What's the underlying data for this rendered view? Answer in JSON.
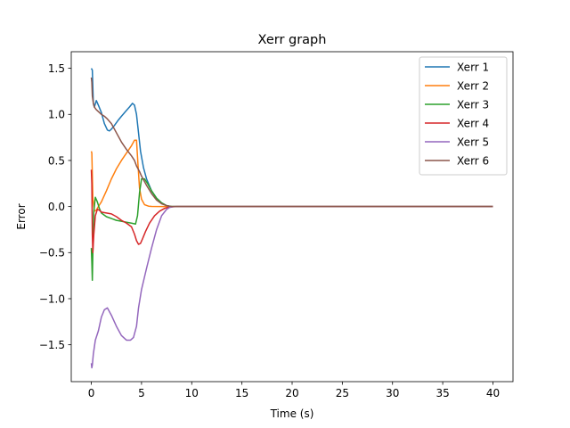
{
  "chart_data": {
    "type": "line",
    "title": "Xerr graph",
    "xlabel": "Time (s)",
    "ylabel": "Error",
    "xlim": [
      -2.0,
      42.0
    ],
    "ylim": [
      -1.9,
      1.68
    ],
    "xticks": [
      0,
      5,
      10,
      15,
      20,
      25,
      30,
      35,
      40
    ],
    "xtick_labels": [
      "0",
      "5",
      "10",
      "15",
      "20",
      "25",
      "30",
      "35",
      "40"
    ],
    "yticks": [
      -1.5,
      -1.0,
      -0.5,
      0.0,
      0.5,
      1.0,
      1.5
    ],
    "ytick_labels": [
      "−1.5",
      "−1.0",
      "−0.5",
      "0.0",
      "0.5",
      "1.0",
      "1.5"
    ],
    "grid": false,
    "legend_position": "top-right",
    "series": [
      {
        "name": "Xerr 1",
        "color": "#1f77b4",
        "x": [
          0,
          0.1,
          0.2,
          0.3,
          0.5,
          0.7,
          1.0,
          1.3,
          1.6,
          1.8,
          2.0,
          2.3,
          2.7,
          3.0,
          3.4,
          3.8,
          4.1,
          4.3,
          4.5,
          4.7,
          4.9,
          5.2,
          5.5,
          6.0,
          6.5,
          7.0,
          7.5,
          7.8,
          8.0,
          10,
          40
        ],
        "y": [
          1.5,
          1.48,
          1.12,
          1.08,
          1.15,
          1.1,
          1.02,
          0.9,
          0.83,
          0.82,
          0.84,
          0.88,
          0.94,
          0.98,
          1.03,
          1.08,
          1.12,
          1.1,
          1.0,
          0.8,
          0.6,
          0.42,
          0.3,
          0.17,
          0.09,
          0.04,
          0.01,
          0.003,
          0.0,
          0.0,
          0.0
        ]
      },
      {
        "name": "Xerr 2",
        "color": "#ff7f0e",
        "x": [
          0,
          0.05,
          0.15,
          0.3,
          0.5,
          0.7,
          1.0,
          1.5,
          2.0,
          2.5,
          3.0,
          3.5,
          4.0,
          4.3,
          4.5,
          4.65,
          4.8,
          5.0,
          5.3,
          5.7,
          6.0,
          7.0,
          8.0,
          10,
          40
        ],
        "y": [
          0.6,
          0.58,
          0.1,
          -0.05,
          -0.04,
          0.0,
          0.05,
          0.17,
          0.3,
          0.41,
          0.5,
          0.58,
          0.66,
          0.72,
          0.72,
          0.45,
          0.2,
          0.08,
          0.02,
          0.004,
          0.001,
          0.0,
          0.0,
          0.0,
          0.0
        ]
      },
      {
        "name": "Xerr 3",
        "color": "#2ca02c",
        "x": [
          0,
          0.05,
          0.1,
          0.15,
          0.25,
          0.4,
          0.6,
          0.8,
          1.0,
          1.5,
          2.0,
          2.5,
          3.0,
          3.5,
          4.0,
          4.4,
          4.6,
          4.8,
          5.0,
          5.3,
          5.6,
          6.0,
          6.5,
          7.0,
          7.5,
          8.0,
          10,
          40
        ],
        "y": [
          -0.45,
          -0.6,
          -0.8,
          -0.5,
          -0.05,
          0.1,
          0.05,
          -0.02,
          -0.07,
          -0.11,
          -0.13,
          -0.15,
          -0.16,
          -0.17,
          -0.18,
          -0.19,
          -0.1,
          0.15,
          0.3,
          0.3,
          0.25,
          0.17,
          0.09,
          0.04,
          0.01,
          0.0,
          0.0,
          0.0
        ]
      },
      {
        "name": "Xerr 4",
        "color": "#d62728",
        "x": [
          0,
          0.05,
          0.1,
          0.15,
          0.25,
          0.4,
          0.6,
          0.8,
          1.0,
          1.5,
          2.0,
          2.5,
          3.0,
          3.5,
          4.0,
          4.3,
          4.5,
          4.7,
          4.9,
          5.1,
          5.4,
          5.8,
          6.3,
          6.8,
          7.3,
          7.8,
          8.5,
          10,
          40
        ],
        "y": [
          0.4,
          0.25,
          -0.3,
          -0.5,
          -0.3,
          -0.1,
          -0.03,
          -0.04,
          -0.06,
          -0.07,
          -0.08,
          -0.11,
          -0.15,
          -0.18,
          -0.22,
          -0.3,
          -0.37,
          -0.41,
          -0.4,
          -0.35,
          -0.27,
          -0.18,
          -0.1,
          -0.05,
          -0.02,
          -0.005,
          0.0,
          0.0,
          0.0
        ]
      },
      {
        "name": "Xerr 5",
        "color": "#9467bd",
        "x": [
          0,
          0.05,
          0.1,
          0.2,
          0.4,
          0.7,
          1.0,
          1.3,
          1.6,
          2.0,
          2.5,
          3.0,
          3.5,
          3.9,
          4.2,
          4.5,
          4.7,
          5.0,
          5.5,
          6.0,
          6.5,
          7.0,
          7.5,
          7.8,
          8.2,
          10,
          40
        ],
        "y": [
          -1.7,
          -1.75,
          -1.72,
          -1.6,
          -1.45,
          -1.35,
          -1.2,
          -1.12,
          -1.1,
          -1.18,
          -1.3,
          -1.4,
          -1.45,
          -1.45,
          -1.42,
          -1.3,
          -1.1,
          -0.9,
          -0.67,
          -0.45,
          -0.25,
          -0.1,
          -0.03,
          -0.01,
          0.0,
          0.0,
          0.0
        ]
      },
      {
        "name": "Xerr 6",
        "color": "#8c564b",
        "x": [
          0,
          0.05,
          0.1,
          0.2,
          0.3,
          0.5,
          0.8,
          1.0,
          1.3,
          1.6,
          2.0,
          2.5,
          3.0,
          3.5,
          4.0,
          4.3,
          4.5,
          4.8,
          5.0,
          5.5,
          6.0,
          6.5,
          7.0,
          7.5,
          8.0,
          10,
          40
        ],
        "y": [
          1.4,
          1.35,
          1.2,
          1.12,
          1.08,
          1.05,
          1.02,
          1.0,
          0.98,
          0.95,
          0.9,
          0.8,
          0.7,
          0.62,
          0.55,
          0.5,
          0.44,
          0.38,
          0.33,
          0.23,
          0.14,
          0.07,
          0.03,
          0.01,
          0.0,
          0.0,
          0.0
        ]
      }
    ]
  }
}
